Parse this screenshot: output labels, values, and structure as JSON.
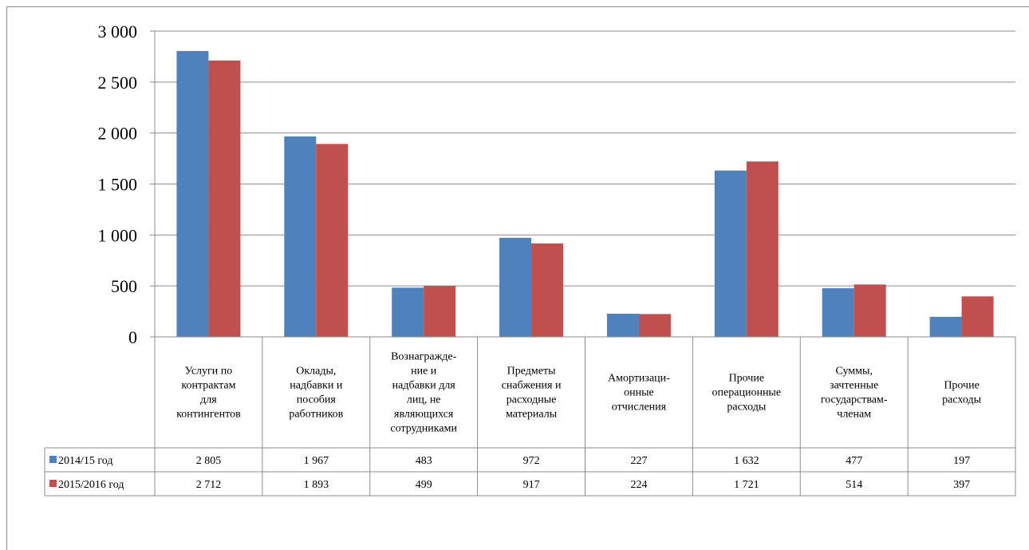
{
  "chart_data": {
    "type": "bar",
    "categories": [
      [
        "Услуги по",
        "контрактам",
        "для",
        "контингентов"
      ],
      [
        "Оклады,",
        "надбавки и",
        "пособия",
        "работников"
      ],
      [
        "Вознагражде-",
        "ние и",
        "надбавки для",
        "лиц, не",
        "являющихся",
        "сотрудниками"
      ],
      [
        "Предметы",
        "снабжения и",
        "расходные",
        "материалы"
      ],
      [
        "Амортизаци-",
        "онные",
        "отчисления"
      ],
      [
        "Прочие",
        "операционные",
        "расходы"
      ],
      [
        "Суммы,",
        "зачтенные",
        "государствам-",
        "членам"
      ],
      [
        "Прочие",
        "расходы"
      ]
    ],
    "series": [
      {
        "name": "2014/15 год",
        "color": "#4f81bd",
        "values": [
          2805,
          1967,
          483,
          972,
          227,
          1632,
          477,
          197
        ],
        "labels": [
          "2 805",
          "1 967",
          "483",
          "972",
          "227",
          "1 632",
          "477",
          "197"
        ]
      },
      {
        "name": "2015/2016 год",
        "color": "#c0504d",
        "values": [
          2712,
          1893,
          499,
          917,
          224,
          1721,
          514,
          397
        ],
        "labels": [
          "2 712",
          "1 893",
          "499",
          "917",
          "224",
          "1 721",
          "514",
          "397"
        ]
      }
    ],
    "ylim": [
      0,
      3000
    ],
    "yticks": [
      0,
      500,
      1000,
      1500,
      2000,
      2500,
      3000
    ],
    "ytick_labels": [
      "0",
      "500",
      "1 000",
      "1 500",
      "2 000",
      "2 500",
      "3 000"
    ],
    "grid": true,
    "legend": "data-table"
  }
}
